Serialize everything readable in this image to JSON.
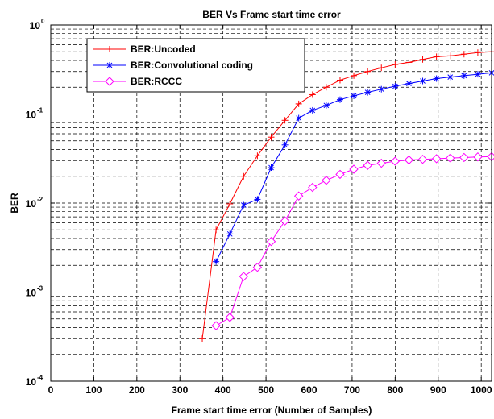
{
  "chart_data": {
    "type": "line",
    "title": "BER Vs Frame start time error",
    "xlabel": "Frame start time error (Number of Samples)",
    "ylabel": "BER",
    "xlim": [
      0,
      1024
    ],
    "ylim": [
      0.0001,
      1
    ],
    "yscale": "log",
    "grid": true,
    "grid_style": "dashed",
    "legend_position": "top-left",
    "x_ticks": [
      "0",
      "100",
      "200",
      "300",
      "400",
      "500",
      "600",
      "700",
      "800",
      "900",
      "1000"
    ],
    "y_ticks": [
      {
        "base": "10",
        "exp": "-4"
      },
      {
        "base": "10",
        "exp": "-3"
      },
      {
        "base": "10",
        "exp": "-2"
      },
      {
        "base": "10",
        "exp": "-1"
      },
      {
        "base": "10",
        "exp": "0"
      }
    ],
    "series": [
      {
        "name": "BER:Uncoded",
        "color": "#ff0000",
        "marker": "plus",
        "x": [
          352,
          384,
          416,
          448,
          480,
          512,
          544,
          576,
          608,
          640,
          672,
          704,
          736,
          768,
          800,
          832,
          864,
          896,
          928,
          960,
          992,
          1024
        ],
        "y": [
          0.0003,
          0.005,
          0.0098,
          0.02,
          0.034,
          0.055,
          0.085,
          0.13,
          0.165,
          0.2,
          0.24,
          0.27,
          0.3,
          0.33,
          0.36,
          0.38,
          0.41,
          0.44,
          0.45,
          0.47,
          0.49,
          0.5
        ]
      },
      {
        "name": "BER:Convolutional coding",
        "color": "#0000ff",
        "marker": "asterisk",
        "x": [
          384,
          416,
          448,
          480,
          512,
          544,
          576,
          608,
          640,
          672,
          704,
          736,
          768,
          800,
          832,
          864,
          896,
          928,
          960,
          992,
          1024
        ],
        "y": [
          0.0022,
          0.0045,
          0.0095,
          0.011,
          0.025,
          0.045,
          0.09,
          0.11,
          0.125,
          0.145,
          0.16,
          0.175,
          0.19,
          0.205,
          0.22,
          0.235,
          0.25,
          0.26,
          0.27,
          0.28,
          0.29
        ]
      },
      {
        "name": "BER:RCCC",
        "color": "#ff00ff",
        "marker": "diamond",
        "x": [
          384,
          416,
          448,
          480,
          512,
          544,
          576,
          608,
          640,
          672,
          704,
          736,
          768,
          800,
          832,
          864,
          896,
          928,
          960,
          992,
          1024
        ],
        "y": [
          0.00042,
          0.00052,
          0.0015,
          0.0019,
          0.0037,
          0.0063,
          0.012,
          0.015,
          0.018,
          0.021,
          0.024,
          0.0265,
          0.028,
          0.0295,
          0.0305,
          0.031,
          0.0315,
          0.032,
          0.0325,
          0.033,
          0.0332
        ]
      }
    ]
  }
}
